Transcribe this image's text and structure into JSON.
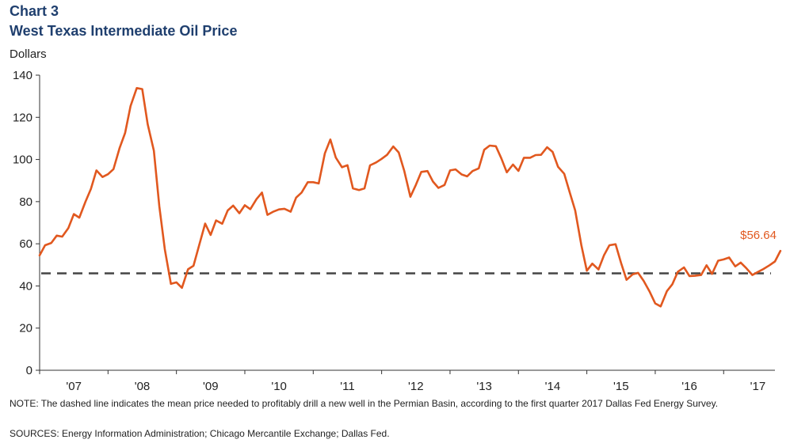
{
  "header": {
    "chart_number": "Chart 3",
    "title": "West Texas Intermediate Oil Price"
  },
  "footer": {
    "note": "NOTE: The dashed line indicates the mean price needed to profitably drill a new well in the Permian Basin, according to the first quarter 2017 Dallas Fed Energy Survey.",
    "sources": "SOURCES: Energy Information  Administration; Chicago Mercantile Exchange; Dallas Fed."
  },
  "chart_data": {
    "type": "line",
    "title": "West Texas Intermediate Oil Price",
    "ylabel": "Dollars",
    "xlabel": "",
    "ylim": [
      0,
      140
    ],
    "yticks": [
      0,
      20,
      40,
      60,
      80,
      100,
      120,
      140
    ],
    "xlim": [
      2007.0,
      2017.75
    ],
    "xticks": [
      {
        "label": "'07",
        "x": 2007.5
      },
      {
        "label": "'08",
        "x": 2008.5
      },
      {
        "label": "'09",
        "x": 2009.5
      },
      {
        "label": "'10",
        "x": 2010.5
      },
      {
        "label": "'11",
        "x": 2011.5
      },
      {
        "label": "'12",
        "x": 2012.5
      },
      {
        "label": "'13",
        "x": 2013.5
      },
      {
        "label": "'14",
        "x": 2014.5
      },
      {
        "label": "'15",
        "x": 2015.5
      },
      {
        "label": "'16",
        "x": 2016.5
      },
      {
        "label": "'17",
        "x": 2017.5
      }
    ],
    "grid": false,
    "line_color": "#e1581f",
    "reference_color": "#444444",
    "series": [
      {
        "values": [
          [
            2007.0,
            54.5
          ],
          [
            2007.08,
            59.3
          ],
          [
            2007.17,
            60.4
          ],
          [
            2007.25,
            63.9
          ],
          [
            2007.33,
            63.4
          ],
          [
            2007.42,
            67.5
          ],
          [
            2007.5,
            74.1
          ],
          [
            2007.58,
            72.4
          ],
          [
            2007.67,
            79.9
          ],
          [
            2007.75,
            86.0
          ],
          [
            2007.83,
            94.8
          ],
          [
            2007.92,
            91.7
          ],
          [
            2008.0,
            93.0
          ],
          [
            2008.08,
            95.4
          ],
          [
            2008.17,
            105.5
          ],
          [
            2008.25,
            112.6
          ],
          [
            2008.33,
            125.4
          ],
          [
            2008.42,
            133.9
          ],
          [
            2008.5,
            133.4
          ],
          [
            2008.58,
            116.7
          ],
          [
            2008.67,
            104.1
          ],
          [
            2008.75,
            77.7
          ],
          [
            2008.83,
            57.4
          ],
          [
            2008.92,
            41.0
          ],
          [
            2009.0,
            41.7
          ],
          [
            2009.08,
            39.1
          ],
          [
            2009.17,
            47.9
          ],
          [
            2009.25,
            49.6
          ],
          [
            2009.33,
            59.0
          ],
          [
            2009.42,
            69.6
          ],
          [
            2009.5,
            64.2
          ],
          [
            2009.58,
            71.1
          ],
          [
            2009.67,
            69.5
          ],
          [
            2009.75,
            75.8
          ],
          [
            2009.83,
            78.1
          ],
          [
            2009.92,
            74.5
          ],
          [
            2010.0,
            78.3
          ],
          [
            2010.08,
            76.4
          ],
          [
            2010.17,
            81.2
          ],
          [
            2010.25,
            84.3
          ],
          [
            2010.33,
            73.7
          ],
          [
            2010.42,
            75.3
          ],
          [
            2010.5,
            76.3
          ],
          [
            2010.58,
            76.6
          ],
          [
            2010.67,
            75.2
          ],
          [
            2010.75,
            81.9
          ],
          [
            2010.83,
            84.3
          ],
          [
            2010.92,
            89.2
          ],
          [
            2011.0,
            89.2
          ],
          [
            2011.08,
            88.6
          ],
          [
            2011.17,
            102.9
          ],
          [
            2011.25,
            109.5
          ],
          [
            2011.33,
            100.9
          ],
          [
            2011.42,
            96.3
          ],
          [
            2011.5,
            97.3
          ],
          [
            2011.58,
            86.3
          ],
          [
            2011.67,
            85.5
          ],
          [
            2011.75,
            86.3
          ],
          [
            2011.83,
            97.2
          ],
          [
            2011.92,
            98.6
          ],
          [
            2012.0,
            100.3
          ],
          [
            2012.08,
            102.2
          ],
          [
            2012.17,
            106.2
          ],
          [
            2012.25,
            103.3
          ],
          [
            2012.33,
            94.7
          ],
          [
            2012.42,
            82.3
          ],
          [
            2012.5,
            87.9
          ],
          [
            2012.58,
            94.1
          ],
          [
            2012.67,
            94.5
          ],
          [
            2012.75,
            89.5
          ],
          [
            2012.83,
            86.5
          ],
          [
            2012.92,
            87.9
          ],
          [
            2013.0,
            94.8
          ],
          [
            2013.08,
            95.3
          ],
          [
            2013.17,
            92.9
          ],
          [
            2013.25,
            92.0
          ],
          [
            2013.33,
            94.5
          ],
          [
            2013.42,
            95.8
          ],
          [
            2013.5,
            104.6
          ],
          [
            2013.58,
            106.6
          ],
          [
            2013.67,
            106.3
          ],
          [
            2013.75,
            100.5
          ],
          [
            2013.83,
            93.9
          ],
          [
            2013.92,
            97.6
          ],
          [
            2014.0,
            94.6
          ],
          [
            2014.08,
            100.8
          ],
          [
            2014.17,
            100.8
          ],
          [
            2014.25,
            102.1
          ],
          [
            2014.33,
            102.2
          ],
          [
            2014.42,
            105.8
          ],
          [
            2014.5,
            103.6
          ],
          [
            2014.58,
            96.5
          ],
          [
            2014.67,
            93.2
          ],
          [
            2014.75,
            84.4
          ],
          [
            2014.83,
            75.8
          ],
          [
            2014.92,
            59.3
          ],
          [
            2015.0,
            47.2
          ],
          [
            2015.08,
            50.6
          ],
          [
            2015.17,
            47.8
          ],
          [
            2015.25,
            54.5
          ],
          [
            2015.33,
            59.3
          ],
          [
            2015.42,
            59.8
          ],
          [
            2015.5,
            50.9
          ],
          [
            2015.58,
            42.9
          ],
          [
            2015.67,
            45.5
          ],
          [
            2015.75,
            46.2
          ],
          [
            2015.83,
            42.4
          ],
          [
            2015.92,
            37.2
          ],
          [
            2016.0,
            31.7
          ],
          [
            2016.08,
            30.3
          ],
          [
            2016.17,
            37.5
          ],
          [
            2016.25,
            40.8
          ],
          [
            2016.33,
            46.7
          ],
          [
            2016.42,
            48.8
          ],
          [
            2016.5,
            44.7
          ],
          [
            2016.58,
            44.8
          ],
          [
            2016.67,
            45.2
          ],
          [
            2016.75,
            49.8
          ],
          [
            2016.83,
            45.7
          ],
          [
            2016.92,
            52.0
          ],
          [
            2017.0,
            52.6
          ],
          [
            2017.08,
            53.5
          ],
          [
            2017.17,
            49.3
          ],
          [
            2017.25,
            51.1
          ],
          [
            2017.33,
            48.5
          ],
          [
            2017.42,
            45.2
          ],
          [
            2017.5,
            46.6
          ],
          [
            2017.58,
            48.0
          ],
          [
            2017.67,
            49.8
          ],
          [
            2017.75,
            51.6
          ],
          [
            2017.83,
            56.64
          ]
        ]
      }
    ],
    "reference_line": {
      "y": 46,
      "style": "dashed"
    },
    "annotations": [
      {
        "text": "$56.64",
        "x": 2017.83,
        "y": 56.64
      }
    ]
  }
}
